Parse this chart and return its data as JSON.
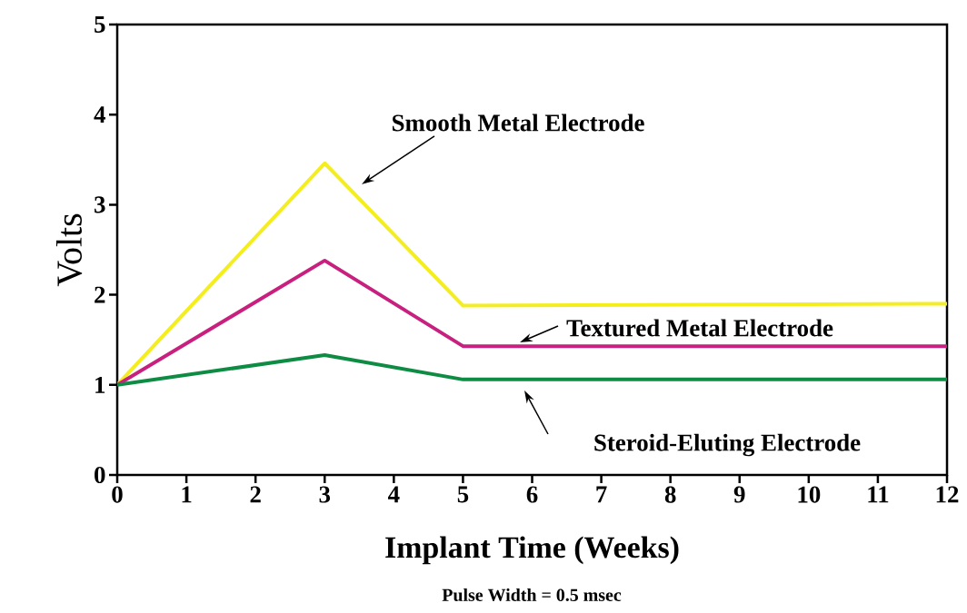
{
  "chart_data": {
    "type": "line",
    "xlabel": "Implant Time (Weeks)",
    "ylabel": "Volts",
    "annotations": [
      "Pulse Width = 0.5 msec"
    ],
    "x": [
      0,
      3,
      5,
      12
    ],
    "series": [
      {
        "name": "Smooth Metal Electrode",
        "color": "#f5ee1f",
        "values": [
          1,
          3.46,
          1.88,
          1.9
        ]
      },
      {
        "name": "Textured Metal Electrode",
        "color": "#c8207f",
        "values": [
          1,
          2.38,
          1.43,
          1.43
        ]
      },
      {
        "name": "Steroid-Eluting Electrode",
        "color": "#0e8c44",
        "values": [
          1,
          1.33,
          1.06,
          1.06
        ]
      }
    ],
    "xlim": [
      0,
      12
    ],
    "ylim": [
      0,
      5
    ],
    "xticks": [
      0,
      1,
      2,
      3,
      4,
      5,
      6,
      7,
      8,
      9,
      10,
      11,
      12
    ],
    "yticks": [
      0,
      1,
      2,
      3,
      4,
      5
    ],
    "grid": false,
    "legend": false,
    "marker": "none",
    "line_style": "solid"
  }
}
